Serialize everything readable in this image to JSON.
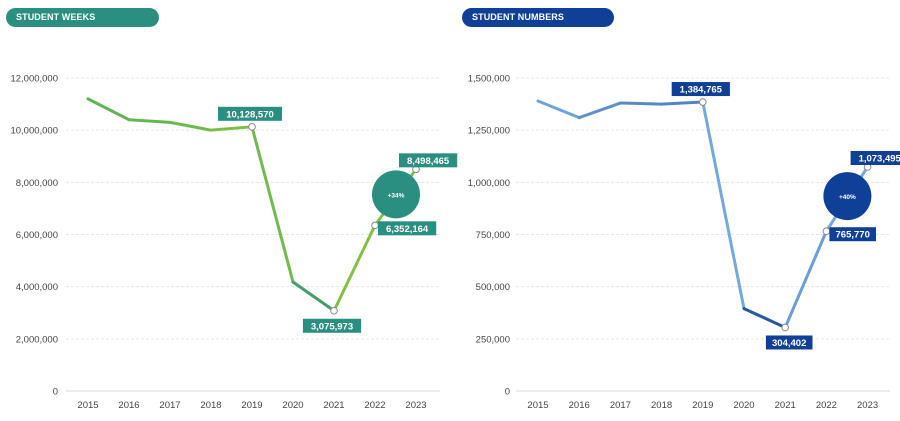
{
  "chart_data": [
    {
      "type": "line",
      "title": "STUDENT WEEKS",
      "x": [
        "2015",
        "2016",
        "2017",
        "2018",
        "2019",
        "2020",
        "2021",
        "2022",
        "2023"
      ],
      "series": [
        {
          "values": [
            11200000,
            10400000,
            10300000,
            10000000,
            10128570,
            4180000,
            3075973,
            6352164,
            8498465
          ]
        }
      ],
      "y_ticks": [
        "0",
        "2,000,000",
        "4,000,000",
        "6,000,000",
        "8,000,000",
        "10,000,000",
        "12,000,000"
      ],
      "ylim": [
        0,
        12000000
      ],
      "data_labels": [
        {
          "index": 4,
          "text": "10,128,570"
        },
        {
          "index": 6,
          "text": "3,075,973"
        },
        {
          "index": 7,
          "text": "6,352,164"
        },
        {
          "index": 8,
          "text": "8,498,465"
        }
      ],
      "annotation": "+34%",
      "grid": true,
      "colors": {
        "accent": "#2a8f80",
        "line_light": "#84c441",
        "line_dark": "#2a8f80"
      }
    },
    {
      "type": "line",
      "title": "STUDENT NUMBERS",
      "x": [
        "2015",
        "2016",
        "2017",
        "2018",
        "2019",
        "2020",
        "2021",
        "2022",
        "2023"
      ],
      "series": [
        {
          "values": [
            1390000,
            1310000,
            1380000,
            1375000,
            1384765,
            395000,
            304402,
            765770,
            1073495
          ]
        }
      ],
      "y_ticks": [
        "0",
        "250,000",
        "500,000",
        "750,000",
        "1,000,000",
        "1,250,000",
        "1,500,000"
      ],
      "ylim": [
        0,
        1500000
      ],
      "data_labels": [
        {
          "index": 4,
          "text": "1,384,765"
        },
        {
          "index": 6,
          "text": "304,402"
        },
        {
          "index": 7,
          "text": "765,770"
        },
        {
          "index": 8,
          "text": "1,073,495"
        }
      ],
      "annotation": "+40%",
      "grid": true,
      "colors": {
        "accent": "#0f3f96",
        "line_light": "#7fb2e5",
        "line_dark": "#1d4f9c"
      }
    }
  ]
}
